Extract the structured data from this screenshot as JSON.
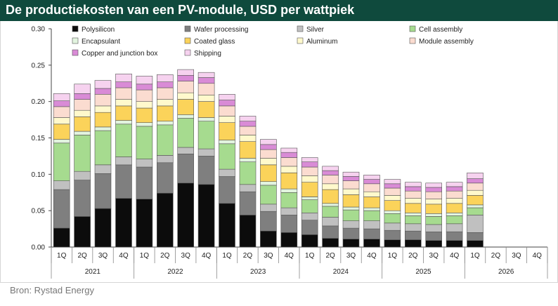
{
  "header": {
    "title": "De productiekosten van een PV-module, USD per wattpiek"
  },
  "source": "Bron: Rystad Energy",
  "colors": {
    "header_bg": "#0f4a3d",
    "Polysilicon": "#0c0c0c",
    "Wafer processing": "#7f7f7f",
    "Silver": "#c0c0c0",
    "Cell assembly": "#a6db8f",
    "Encapsulant": "#e2f4df",
    "Coated glass": "#fbd35a",
    "Aluminum": "#fff9cc",
    "Module assembly": "#fbdcd0",
    "Copper and junction box": "#d98bd6",
    "Shipping": "#f6d2ef"
  },
  "chart_data": {
    "type": "bar",
    "stacked": true,
    "title": "De productiekosten van een PV-module, USD per wattpiek",
    "ylim": [
      0,
      0.3
    ],
    "yticks": [
      "0.00",
      "0.05",
      "0.10",
      "0.15",
      "0.20",
      "0.25",
      "0.30"
    ],
    "categories": [
      "1Q",
      "2Q",
      "3Q",
      "4Q",
      "1Q",
      "2Q",
      "3Q",
      "4Q",
      "1Q",
      "2Q",
      "3Q",
      "4Q",
      "1Q",
      "2Q",
      "3Q",
      "4Q",
      "1Q",
      "2Q",
      "3Q",
      "4Q",
      "1Q",
      "2Q",
      "3Q",
      "4Q"
    ],
    "years": [
      "2021",
      "2022",
      "2023",
      "2024",
      "2025",
      "2026"
    ],
    "legend_position": "top",
    "series": [
      {
        "name": "Polysilicon",
        "values": [
          0.026,
          0.042,
          0.053,
          0.067,
          0.066,
          0.074,
          0.088,
          0.086,
          0.06,
          0.044,
          0.022,
          0.02,
          0.017,
          0.012,
          0.011,
          0.011,
          0.01,
          0.01,
          0.009,
          0.009,
          0.009,
          null,
          null,
          null
        ]
      },
      {
        "name": "Wafer processing",
        "values": [
          0.053,
          0.05,
          0.048,
          0.046,
          0.044,
          0.042,
          0.04,
          0.039,
          0.037,
          0.032,
          0.027,
          0.024,
          0.02,
          0.017,
          0.015,
          0.014,
          0.013,
          0.012,
          0.012,
          0.012,
          0.011,
          null,
          null,
          null
        ]
      },
      {
        "name": "Silver",
        "values": [
          0.012,
          0.012,
          0.012,
          0.011,
          0.011,
          0.01,
          0.009,
          0.01,
          0.01,
          0.01,
          0.01,
          0.01,
          0.01,
          0.012,
          0.01,
          0.011,
          0.01,
          0.01,
          0.01,
          0.011,
          0.024,
          null,
          null,
          null
        ]
      },
      {
        "name": "Cell assembly",
        "values": [
          0.052,
          0.05,
          0.047,
          0.045,
          0.045,
          0.042,
          0.04,
          0.038,
          0.035,
          0.031,
          0.026,
          0.021,
          0.018,
          0.015,
          0.015,
          0.014,
          0.013,
          0.011,
          0.011,
          0.011,
          0.01,
          null,
          null,
          null
        ]
      },
      {
        "name": "Encapsulant",
        "values": [
          0.005,
          0.005,
          0.005,
          0.005,
          0.005,
          0.005,
          0.005,
          0.005,
          0.005,
          0.005,
          0.005,
          0.005,
          0.004,
          0.004,
          0.004,
          0.004,
          0.004,
          0.004,
          0.004,
          0.004,
          0.004,
          null,
          null,
          null
        ]
      },
      {
        "name": "Coated glass",
        "values": [
          0.021,
          0.02,
          0.02,
          0.02,
          0.02,
          0.021,
          0.021,
          0.022,
          0.024,
          0.023,
          0.023,
          0.022,
          0.02,
          0.019,
          0.017,
          0.015,
          0.014,
          0.013,
          0.013,
          0.013,
          0.013,
          null,
          null,
          null
        ]
      },
      {
        "name": "Aluminum",
        "values": [
          0.009,
          0.009,
          0.009,
          0.009,
          0.009,
          0.009,
          0.009,
          0.009,
          0.009,
          0.009,
          0.009,
          0.009,
          0.009,
          0.008,
          0.008,
          0.007,
          0.007,
          0.007,
          0.007,
          0.007,
          0.007,
          null,
          null,
          null
        ]
      },
      {
        "name": "Module assembly",
        "values": [
          0.015,
          0.015,
          0.016,
          0.016,
          0.016,
          0.016,
          0.016,
          0.016,
          0.014,
          0.012,
          0.012,
          0.012,
          0.012,
          0.012,
          0.011,
          0.011,
          0.01,
          0.01,
          0.01,
          0.01,
          0.01,
          null,
          null,
          null
        ]
      },
      {
        "name": "Copper and junction box",
        "values": [
          0.008,
          0.008,
          0.008,
          0.008,
          0.008,
          0.008,
          0.008,
          0.008,
          0.008,
          0.007,
          0.007,
          0.007,
          0.007,
          0.006,
          0.006,
          0.006,
          0.006,
          0.006,
          0.006,
          0.006,
          0.006,
          null,
          null,
          null
        ]
      },
      {
        "name": "Shipping",
        "values": [
          0.01,
          0.013,
          0.011,
          0.011,
          0.011,
          0.01,
          0.008,
          0.007,
          0.008,
          0.007,
          0.007,
          0.006,
          0.006,
          0.006,
          0.006,
          0.006,
          0.006,
          0.006,
          0.006,
          0.006,
          0.008,
          null,
          null,
          null
        ]
      }
    ]
  }
}
